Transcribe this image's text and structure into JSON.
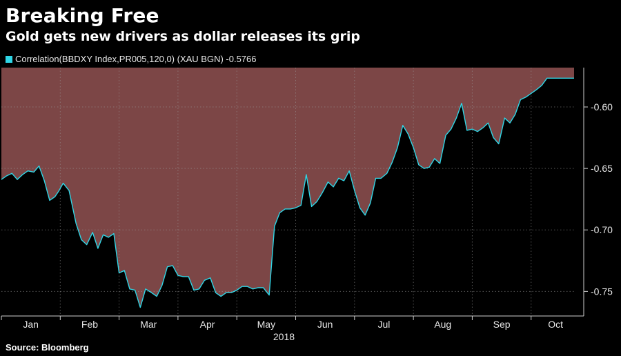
{
  "header": {
    "title": "Breaking Free",
    "subtitle": "Gold gets new drivers as dollar releases its grip"
  },
  "legend": {
    "label": "Correlation(BBDXY Index,PR005,120,0) (XAU BGN) -0.5766",
    "color": "#2fd6e6"
  },
  "footer": {
    "source": "Source: Bloomberg"
  },
  "chart_data": {
    "type": "area",
    "title": "Breaking Free",
    "subtitle": "Gold gets new drivers as dollar releases its grip",
    "xlabel": "2018",
    "ylabel": "",
    "ylim": [
      -0.77,
      -0.568
    ],
    "yticks": [
      -0.6,
      -0.65,
      -0.7,
      -0.75
    ],
    "ytick_labels": [
      "-0.60",
      "-0.65",
      "-0.70",
      "-0.75"
    ],
    "xlim": [
      0,
      9.73
    ],
    "month_ticks": [
      0,
      1,
      2,
      3,
      4,
      5,
      6,
      7,
      8,
      9
    ],
    "month_labels": [
      "Jan",
      "Feb",
      "Mar",
      "Apr",
      "May",
      "Jun",
      "Jul",
      "Aug",
      "Sep",
      "Oct"
    ],
    "grid": true,
    "area_color": "#7c4646",
    "line_color": "#2fd6e6",
    "last_value": -0.5766,
    "series": [
      {
        "name": "Correlation(BBDXY Index,PR005,120,0) (XAU BGN)",
        "x": [
          0.0,
          0.09,
          0.18,
          0.27,
          0.36,
          0.45,
          0.55,
          0.64,
          0.73,
          0.82,
          0.91,
          0.98,
          1.05,
          1.15,
          1.27,
          1.36,
          1.45,
          1.55,
          1.64,
          1.73,
          1.82,
          1.91,
          2.0,
          2.09,
          2.18,
          2.27,
          2.36,
          2.45,
          2.55,
          2.64,
          2.73,
          2.82,
          2.91,
          3.0,
          3.09,
          3.18,
          3.27,
          3.36,
          3.45,
          3.55,
          3.64,
          3.73,
          3.82,
          3.91,
          4.0,
          4.09,
          4.18,
          4.27,
          4.36,
          4.45,
          4.55,
          4.64,
          4.73,
          4.82,
          4.91,
          5.0,
          5.09,
          5.18,
          5.27,
          5.36,
          5.45,
          5.55,
          5.64,
          5.73,
          5.82,
          5.91,
          6.0,
          6.09,
          6.18,
          6.27,
          6.36,
          6.45,
          6.55,
          6.64,
          6.73,
          6.82,
          6.91,
          7.0,
          7.09,
          7.18,
          7.27,
          7.36,
          7.45,
          7.55,
          7.64,
          7.73,
          7.82,
          7.91,
          8.0,
          8.09,
          8.18,
          8.27,
          8.36,
          8.45,
          8.55,
          8.64,
          8.73,
          8.82,
          8.91,
          9.0,
          9.09,
          9.18,
          9.27,
          9.36,
          9.45,
          9.55,
          9.64,
          9.73
        ],
        "y": [
          -0.659,
          -0.656,
          -0.654,
          -0.659,
          -0.655,
          -0.652,
          -0.653,
          -0.648,
          -0.66,
          -0.676,
          -0.673,
          -0.668,
          -0.662,
          -0.668,
          -0.695,
          -0.708,
          -0.712,
          -0.702,
          -0.715,
          -0.704,
          -0.706,
          -0.703,
          -0.735,
          -0.733,
          -0.748,
          -0.749,
          -0.763,
          -0.748,
          -0.751,
          -0.754,
          -0.745,
          -0.73,
          -0.729,
          -0.737,
          -0.738,
          -0.738,
          -0.749,
          -0.748,
          -0.741,
          -0.739,
          -0.751,
          -0.754,
          -0.751,
          -0.751,
          -0.749,
          -0.746,
          -0.746,
          -0.748,
          -0.747,
          -0.747,
          -0.753,
          -0.697,
          -0.686,
          -0.683,
          -0.683,
          -0.682,
          -0.68,
          -0.655,
          -0.681,
          -0.677,
          -0.67,
          -0.661,
          -0.665,
          -0.658,
          -0.66,
          -0.652,
          -0.668,
          -0.682,
          -0.688,
          -0.678,
          -0.658,
          -0.658,
          -0.654,
          -0.645,
          -0.633,
          -0.615,
          -0.622,
          -0.633,
          -0.647,
          -0.65,
          -0.649,
          -0.642,
          -0.646,
          -0.623,
          -0.618,
          -0.609,
          -0.597,
          -0.619,
          -0.618,
          -0.62,
          -0.617,
          -0.613,
          -0.625,
          -0.63,
          -0.609,
          -0.613,
          -0.606,
          -0.594,
          -0.592,
          -0.589,
          -0.586,
          -0.5825,
          -0.5766,
          -0.5766,
          -0.5766,
          -0.5766,
          -0.5766,
          -0.5766
        ]
      }
    ]
  }
}
